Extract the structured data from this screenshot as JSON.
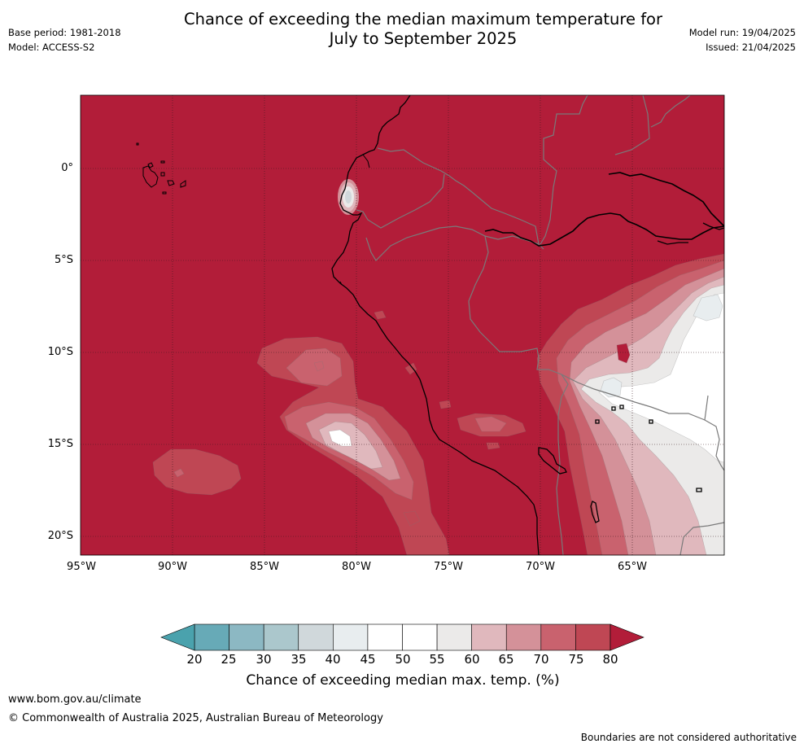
{
  "header": {
    "title_line1": "Chance of exceeding the median maximum temperature for",
    "title_line2": "July to September 2025",
    "base_period": "Base period: 1981-2018",
    "model": "Model: ACCESS-S2",
    "model_run": "Model run: 19/04/2025",
    "issued": "Issued: 21/04/2025"
  },
  "map": {
    "lat_labels": [
      "0°",
      "5°S",
      "10°S",
      "15°S",
      "20°S"
    ],
    "lon_labels": [
      "95°W",
      "90°W",
      "85°W",
      "80°W",
      "75°W",
      "70°W",
      "65°W"
    ],
    "background_category": "75-80",
    "colors": {
      "ocean_high": "#b21d39",
      "coast": "#000000",
      "border": "#808080",
      "grid": "#333333"
    }
  },
  "colorbar": {
    "title": "Chance of exceeding median max. temp. (%)",
    "ticks": [
      "20",
      "25",
      "30",
      "35",
      "40",
      "45",
      "50",
      "55",
      "60",
      "65",
      "70",
      "75",
      "80"
    ],
    "colors": [
      "#67aab7",
      "#8cb8c3",
      "#abc7cc",
      "#d0d8db",
      "#e8edef",
      "#ffffff",
      "#ffffff",
      "#ebeae9",
      "#e0b8bd",
      "#d49199",
      "#c9626e",
      "#bf4754"
    ],
    "under_color": "#4aa2ad",
    "over_color": "#b21d39"
  },
  "footer": {
    "url": "www.bom.gov.au/climate",
    "copyright": "© Commonwealth of Australia 2025, Australian Bureau of Meteorology",
    "disclaimer": "Boundaries are not considered authoritative"
  }
}
